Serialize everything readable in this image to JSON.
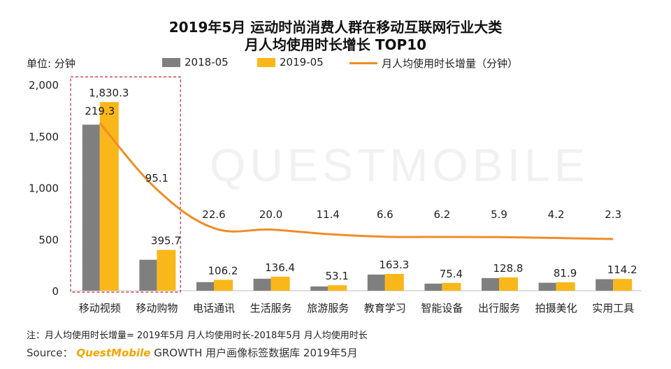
{
  "watermark": "QUESTMOBILE",
  "chart_data": {
    "type": "bar",
    "title": "2019年5月 运动时尚消费人群在移动互联网行业大类",
    "subtitle": "月人均使用时长增长 TOP10",
    "unit_label": "单位: 分钟",
    "categories": [
      "移动视频",
      "移动购物",
      "电话通讯",
      "生活服务",
      "旅游服务",
      "教育学习",
      "智能设备",
      "出行服务",
      "拍摄美化",
      "实用工具"
    ],
    "series": [
      {
        "name": "2018-05",
        "type": "bar",
        "color": "#7f7f7f",
        "values": [
          1611.0,
          300.6,
          83.6,
          116.4,
          41.7,
          156.7,
          69.2,
          122.9,
          77.7,
          111.9
        ]
      },
      {
        "name": "2019-05",
        "type": "bar",
        "color": "#f9b719",
        "values": [
          1830.3,
          395.7,
          106.2,
          136.4,
          53.1,
          163.3,
          75.4,
          128.8,
          81.9,
          114.2
        ],
        "labels": [
          "1,830.3",
          "395.7",
          "106.2",
          "136.4",
          "53.1",
          "163.3",
          "75.4",
          "128.8",
          "81.9",
          "114.2"
        ]
      },
      {
        "name": "月人均使用时长增量（分钟）",
        "type": "line",
        "color": "#f08c28",
        "values": [
          219.3,
          95.1,
          22.6,
          20.0,
          11.4,
          6.6,
          6.2,
          5.9,
          4.2,
          2.3
        ],
        "labels": [
          "219.3",
          "95.1",
          "22.6",
          "20.0",
          "11.4",
          "6.6",
          "6.2",
          "5.9",
          "4.2",
          "2.3"
        ]
      }
    ],
    "ylim": [
      0,
      2000
    ],
    "yticks": [
      "0",
      "500",
      "1,000",
      "1,500",
      "2,000"
    ],
    "ytick_values": [
      0,
      500,
      1000,
      1500,
      2000
    ],
    "legend_position": "top",
    "highlight": "移动视频, 移动购物"
  },
  "footer": {
    "note": "注：月人均使用时长增量= 2019年5月 月人均使用时长-2018年5月 月人均使用时长",
    "source_prefix": "Source：",
    "source_brand": "QuestMobile",
    "source_suffix": "GROWTH 用户画像标签数据库 2019年5月"
  }
}
